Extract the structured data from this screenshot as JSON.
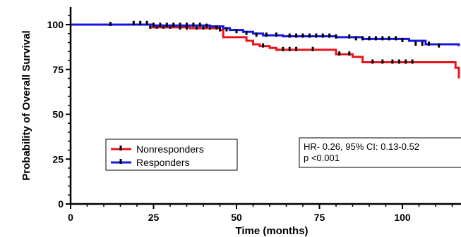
{
  "chart_data": {
    "type": "line",
    "subtype": "kaplan-meier",
    "xlabel": "Time (months)",
    "ylabel": "Probability of Overall Survival",
    "xlim": [
      0,
      117
    ],
    "ylim": [
      0,
      110
    ],
    "xticks": [
      0,
      25,
      50,
      75,
      100
    ],
    "yticks": [
      0,
      25,
      50,
      75,
      100
    ],
    "grid": false,
    "legend_position": "lower-left",
    "series": [
      {
        "name": "Nonresponders",
        "color": "#e8141c",
        "x": [
          0,
          24,
          36,
          45,
          46,
          50,
          53,
          55,
          57,
          60,
          62,
          70,
          80,
          85,
          88,
          115,
          116,
          117
        ],
        "y": [
          100,
          98.5,
          98,
          97,
          93,
          93,
          91,
          89,
          88,
          87,
          86,
          86,
          83.5,
          82,
          79,
          79,
          76,
          70
        ],
        "censor_x": [
          24,
          26,
          28,
          30,
          33,
          35,
          38,
          40,
          42,
          45,
          58,
          64,
          66,
          68,
          73,
          81,
          84,
          91,
          94,
          97,
          99,
          101,
          103
        ],
        "censor_y": [
          98.5,
          98.5,
          98.5,
          98.5,
          98,
          98,
          98,
          98,
          98,
          97,
          88,
          86,
          86,
          86,
          86,
          83.5,
          83.5,
          79,
          79,
          79,
          79,
          79,
          79
        ]
      },
      {
        "name": "Responders",
        "color": "#1515e6",
        "x": [
          0,
          25,
          42,
          46,
          48,
          52,
          55,
          58,
          64,
          80,
          88,
          102,
          107,
          117
        ],
        "y": [
          100,
          99.5,
          99,
          98,
          97,
          96,
          95,
          94,
          93.5,
          93,
          92,
          91,
          89,
          88
        ],
        "censor_x": [
          12,
          19,
          21,
          23,
          25,
          27,
          29,
          31,
          33,
          35,
          37,
          39,
          41,
          44,
          47,
          50,
          53,
          56,
          59,
          62,
          66,
          68,
          70,
          72,
          74,
          76,
          78,
          80,
          84,
          86,
          88,
          90,
          92,
          94,
          96,
          98,
          100,
          104,
          106,
          108,
          111
        ],
        "censor_y": [
          100,
          100.5,
          100.5,
          100.5,
          99.5,
          99.5,
          99.5,
          99.5,
          99.5,
          99.5,
          99.5,
          99.5,
          99,
          98,
          97,
          96,
          95,
          94,
          94,
          94,
          93.5,
          93.5,
          93.5,
          93.5,
          93.5,
          93.5,
          93.5,
          93,
          93,
          92,
          92,
          92,
          92,
          92,
          92,
          92,
          91,
          89,
          89,
          89,
          88
        ]
      }
    ],
    "annotation": [
      "HR- 0.26, 95% CI: 0.13-0.52",
      "p <0.001"
    ]
  }
}
